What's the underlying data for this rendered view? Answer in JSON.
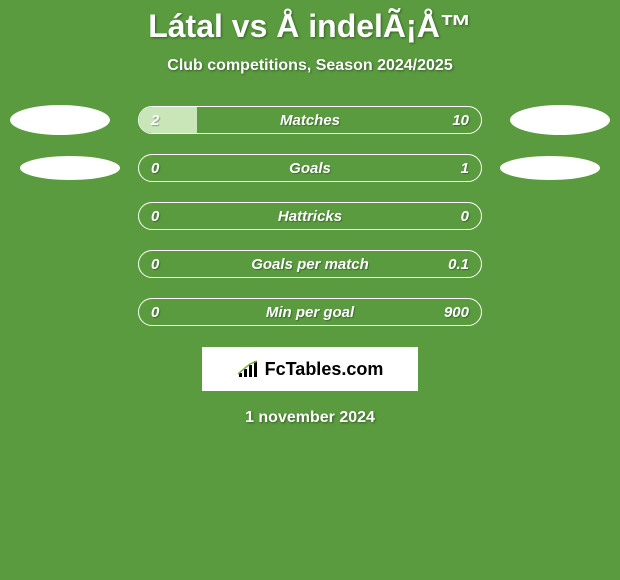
{
  "title": "Látal vs Å indelÃ¡Å™",
  "subtitle": "Club competitions, Season 2024/2025",
  "background_color": "#5a9b3f",
  "bar_border_color": "#ffffff",
  "bar_fill_color": "#c8e6b8",
  "text_color": "#ffffff",
  "stats": [
    {
      "label": "Matches",
      "left_value": "2",
      "right_value": "10",
      "left_fill_pct": 17,
      "right_fill_pct": 0,
      "show_left_ellipse": true,
      "show_right_ellipse": true,
      "ellipse_size": "large"
    },
    {
      "label": "Goals",
      "left_value": "0",
      "right_value": "1",
      "left_fill_pct": 0,
      "right_fill_pct": 0,
      "show_left_ellipse": true,
      "show_right_ellipse": true,
      "ellipse_size": "small"
    },
    {
      "label": "Hattricks",
      "left_value": "0",
      "right_value": "0",
      "left_fill_pct": 0,
      "right_fill_pct": 0,
      "show_left_ellipse": false,
      "show_right_ellipse": false
    },
    {
      "label": "Goals per match",
      "left_value": "0",
      "right_value": "0.1",
      "left_fill_pct": 0,
      "right_fill_pct": 0,
      "show_left_ellipse": false,
      "show_right_ellipse": false
    },
    {
      "label": "Min per goal",
      "left_value": "0",
      "right_value": "900",
      "left_fill_pct": 0,
      "right_fill_pct": 0,
      "show_left_ellipse": false,
      "show_right_ellipse": false
    }
  ],
  "logo_text": "FcTables.com",
  "date": "1 november 2024"
}
